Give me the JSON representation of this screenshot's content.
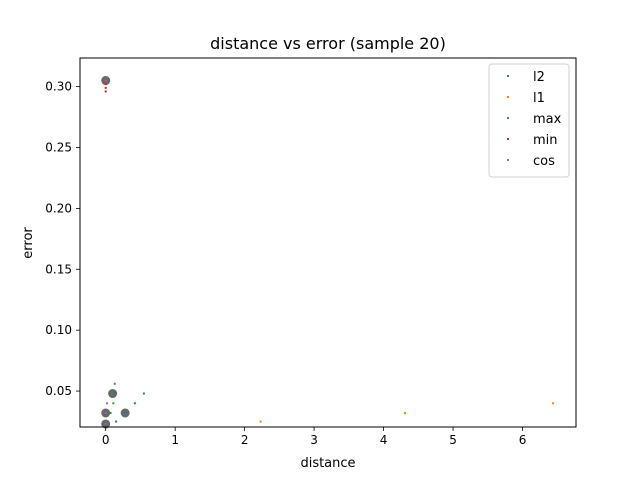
{
  "chart_data": {
    "type": "scatter",
    "title": "distance vs error (sample 20)",
    "xlabel": "distance",
    "ylabel": "error",
    "xlim": [
      -0.37,
      6.77
    ],
    "ylim": [
      0.0205,
      0.3235
    ],
    "xticks": [
      0,
      1,
      2,
      3,
      4,
      5,
      6
    ],
    "xtick_labels": [
      "0",
      "1",
      "2",
      "3",
      "4",
      "5",
      "6"
    ],
    "yticks": [
      0.05,
      0.1,
      0.15,
      0.2,
      0.25,
      0.3
    ],
    "ytick_labels": [
      "0.05",
      "0.10",
      "0.15",
      "0.20",
      "0.25",
      "0.30"
    ],
    "grid": false,
    "legend_position": "top-right",
    "series": [
      {
        "name": "l2",
        "color": "#1f77b4",
        "points": [
          [
            0.0,
            0.305
          ],
          [
            0.0,
            0.032
          ],
          [
            0.0,
            0.023
          ],
          [
            0.1,
            0.048
          ],
          [
            0.15,
            0.025
          ],
          [
            0.28,
            0.032
          ],
          [
            0.42,
            0.04
          ],
          [
            0.55,
            0.048
          ]
        ]
      },
      {
        "name": "l1",
        "color": "#ff7f0e",
        "points": [
          [
            0.0,
            0.305
          ],
          [
            2.23,
            0.025
          ],
          [
            4.31,
            0.032
          ],
          [
            6.44,
            0.04
          ]
        ]
      },
      {
        "name": "max",
        "color": "#2ca02c",
        "points": [
          [
            0.0,
            0.305
          ],
          [
            0.07,
            0.032
          ],
          [
            0.11,
            0.04
          ],
          [
            0.13,
            0.056
          ],
          [
            0.09,
            0.048
          ],
          [
            0.0,
            0.023
          ]
        ]
      },
      {
        "name": "min",
        "color": "#d62728",
        "points": [
          [
            0.0,
            0.305
          ],
          [
            0.0,
            0.302
          ],
          [
            0.0,
            0.299
          ],
          [
            0.0,
            0.296
          ],
          [
            0.0,
            0.032
          ],
          [
            0.0,
            0.023
          ]
        ]
      },
      {
        "name": "cos",
        "color": "#9467bd",
        "points": [
          [
            0.0,
            0.305
          ],
          [
            0.02,
            0.04
          ],
          [
            0.0,
            0.032
          ],
          [
            0.0,
            0.023
          ]
        ]
      }
    ],
    "highlight_markers": {
      "color": "#4d4d4d",
      "points": [
        [
          0.0,
          0.305
        ],
        [
          0.0,
          0.032
        ],
        [
          0.0,
          0.023
        ],
        [
          0.1,
          0.048
        ],
        [
          0.28,
          0.032
        ]
      ]
    }
  }
}
